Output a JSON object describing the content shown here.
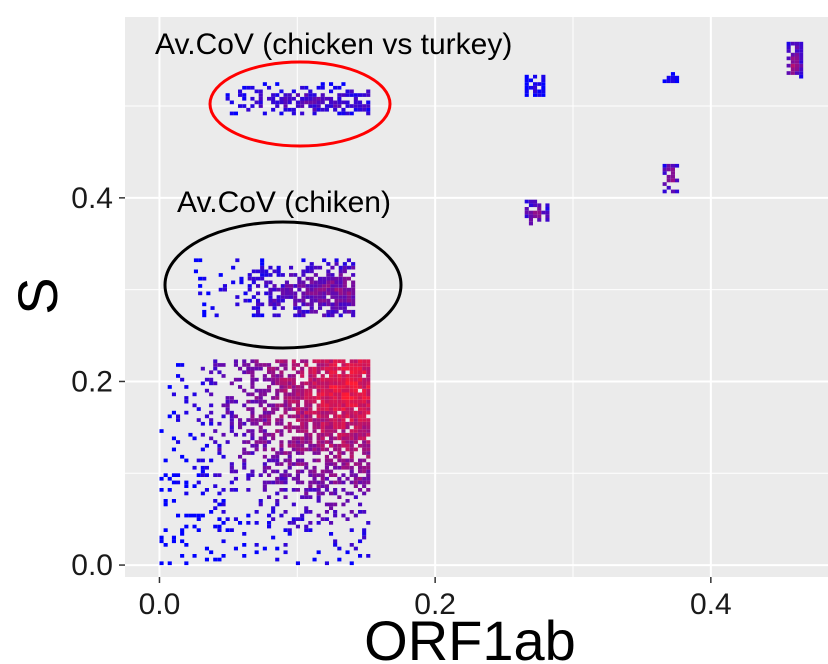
{
  "chart_data": {
    "type": "heatmap",
    "title": "",
    "xlabel": "ORF1ab",
    "ylabel": "S",
    "xlim": [
      -0.025,
      0.485
    ],
    "ylim": [
      -0.013,
      0.597
    ],
    "x_ticks": [
      0.0,
      0.2,
      0.4
    ],
    "x_tick_labels": [
      "0.0",
      "0.2",
      "0.4"
    ],
    "y_ticks": [
      0.0,
      0.2,
      0.4
    ],
    "y_tick_labels": [
      "0.0",
      "0.2",
      "0.4"
    ],
    "grid": true,
    "background": "#ebebeb",
    "gridline_color": "#ffffff",
    "bin_size": [
      0.003,
      0.004
    ],
    "color_scale": {
      "low": "#0000ff",
      "high": "#ff1a33"
    },
    "clusters": [
      {
        "name": "Av.CoV (chicken vs turkey) cluster",
        "x_range": [
          0.045,
          0.15
        ],
        "y_range": [
          0.49,
          0.52
        ],
        "peak": [
          0.11,
          0.503
        ],
        "intensity": 0.35
      },
      {
        "name": "Av.CoV (chiken) cluster",
        "x_range": [
          0.025,
          0.14
        ],
        "y_range": [
          0.27,
          0.33
        ],
        "peak": [
          0.13,
          0.297
        ],
        "intensity": 0.55
      },
      {
        "name": "main cluster",
        "x_range": [
          0.0,
          0.15
        ],
        "y_range": [
          0.0,
          0.22
        ],
        "peak": [
          0.135,
          0.19
        ],
        "intensity": 0.95
      },
      {
        "name": "cluster near (0.27, 0.38)",
        "x_range": [
          0.265,
          0.28
        ],
        "y_range": [
          0.37,
          0.395
        ],
        "peak": [
          0.272,
          0.38
        ],
        "intensity": 0.6
      },
      {
        "name": "cluster near (0.27, 0.52)",
        "x_range": [
          0.265,
          0.278
        ],
        "y_range": [
          0.51,
          0.53
        ],
        "peak": [
          0.27,
          0.52
        ],
        "intensity": 0.1
      },
      {
        "name": "cluster near (0.37, 0.42)",
        "x_range": [
          0.365,
          0.375
        ],
        "y_range": [
          0.405,
          0.435
        ],
        "peak": [
          0.37,
          0.42
        ],
        "intensity": 0.65
      },
      {
        "name": "cluster near (0.37, 0.53)",
        "x_range": [
          0.365,
          0.375
        ],
        "y_range": [
          0.525,
          0.535
        ],
        "peak": [
          0.37,
          0.53
        ],
        "intensity": 0.15
      },
      {
        "name": "cluster near (0.46, 0.55)",
        "x_range": [
          0.455,
          0.463
        ],
        "y_range": [
          0.53,
          0.565
        ],
        "peak": [
          0.459,
          0.545
        ],
        "intensity": 0.7
      }
    ],
    "annotations": [
      {
        "text": "Av.CoV (chicken vs turkey)",
        "circle_color": "#ff0000"
      },
      {
        "text": "Av.CoV (chiken)",
        "circle_color": "#000000"
      }
    ]
  }
}
